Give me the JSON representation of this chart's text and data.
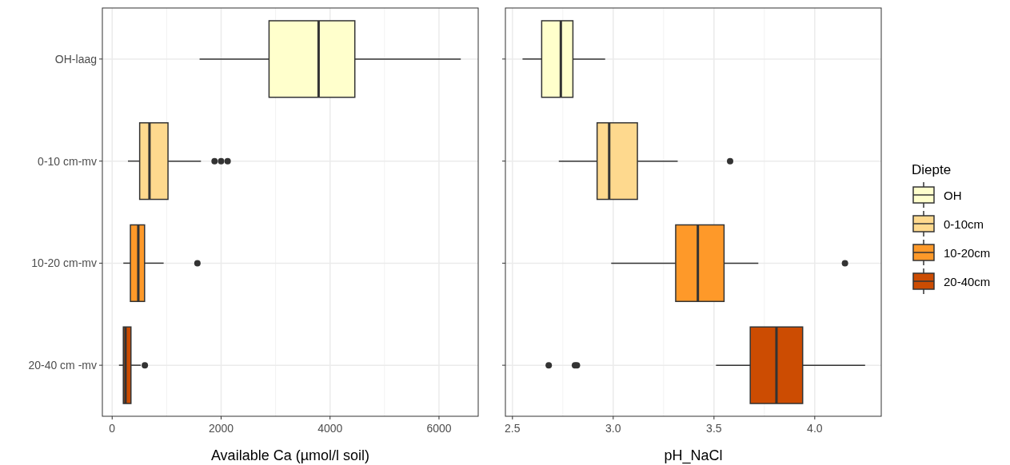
{
  "chart_data": [
    {
      "type": "box",
      "orientation": "horizontal",
      "xlabel": "Available Ca (µmol/l soil)",
      "categories": [
        "OH-laag",
        "0-10 cm-mv",
        "10-20 cm-mv",
        "20-40 cm -mv"
      ],
      "xlim": [
        -180,
        6720
      ],
      "xticks": [
        0,
        2000,
        4000,
        6000
      ],
      "grid": true,
      "series": [
        {
          "color": "#ffffcc",
          "boxes": [
            {
              "low": 1605,
              "q1": 2880,
              "median": 3790,
              "q3": 4455,
              "high": 6400
            },
            null,
            null,
            null
          ]
        },
        {
          "color": "#fed98e",
          "boxes": [
            null,
            {
              "low": 290,
              "q1": 505,
              "median": 685,
              "q3": 1025,
              "high": 1630,
              "outliers": [
                1880,
                2000,
                2120
              ]
            },
            null,
            null
          ]
        },
        {
          "color": "#fe9929",
          "boxes": [
            null,
            null,
            {
              "low": 205,
              "q1": 335,
              "median": 480,
              "q3": 595,
              "high": 945,
              "outliers": [
                1565
              ]
            },
            null
          ]
        },
        {
          "color": "#cc4c02",
          "boxes": [
            null,
            null,
            null,
            {
              "low": 125,
              "q1": 205,
              "median": 245,
              "q3": 345,
              "high": 525,
              "outliers": [
                600
              ]
            }
          ]
        }
      ]
    },
    {
      "type": "box",
      "orientation": "horizontal",
      "xlabel": "pH_NaCl",
      "categories": [
        null,
        null,
        null,
        null
      ],
      "xlim": [
        2.465,
        4.33
      ],
      "xticks": [
        2.5,
        {
          "value": 3,
          "label": "3.0"
        },
        {
          "value": 3.5,
          "label": "3.5"
        },
        {
          "value": 4.0,
          "label": "4.0"
        }
      ],
      "grid": true,
      "tick_labels": "x",
      "legend": "right",
      "legend_title": "Diepte",
      "series": [
        {
          "name": "OH",
          "color": "#ffffcc",
          "boxes": [
            {
              "low": 2.55,
              "q1": 2.645,
              "median": 2.74,
              "q3": 2.8,
              "high": 2.96
            },
            null,
            null,
            null
          ]
        },
        {
          "name": "0-10cm",
          "color": "#fed98e",
          "boxes": [
            null,
            {
              "low": 2.73,
              "q1": 2.92,
              "median": 2.98,
              "q3": 3.12,
              "high": 3.32,
              "outliers": [
                3.58
              ]
            },
            null,
            null
          ]
        },
        {
          "name": "10-20cm",
          "color": "#fe9929",
          "boxes": [
            null,
            null,
            {
              "low": 2.99,
              "q1": 3.31,
              "median": 3.42,
              "q3": 3.55,
              "high": 3.72,
              "outliers": [
                4.15
              ]
            },
            null
          ]
        },
        {
          "name": "20-40cm",
          "color": "#cc4c02",
          "boxes": [
            null,
            null,
            null,
            {
              "low": 3.51,
              "q1": 3.68,
              "median": 3.81,
              "q3": 3.94,
              "high": 4.25,
              "outliers": [
                2.68,
                2.81,
                2.82
              ]
            }
          ]
        }
      ]
    }
  ]
}
